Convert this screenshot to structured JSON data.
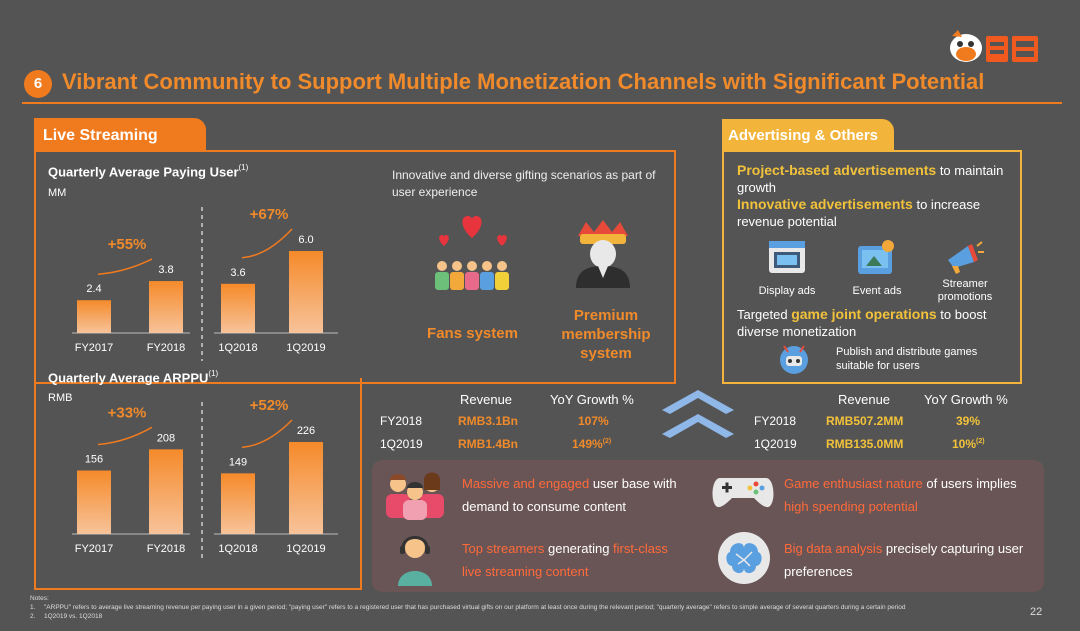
{
  "header": {
    "section_number": "6",
    "title": "Vibrant Community to Support Multiple Monetization Channels with Significant Potential"
  },
  "live_streaming": {
    "tab_label": "Live Streaming",
    "gifting_text": "Innovative and diverse gifting scenarios as part of user experience",
    "fans_label": "Fans system",
    "premium_label": "Premium membership system"
  },
  "chart_data": [
    {
      "type": "bar",
      "title": "Quarterly Average Paying User",
      "title_sup": "(1)",
      "unit": "MM",
      "categories": [
        "FY2017",
        "FY2018",
        "1Q2018",
        "1Q2019"
      ],
      "values": [
        2.4,
        3.8,
        3.6,
        6.0
      ],
      "value_labels": [
        "2.4",
        "3.8",
        "3.6",
        "6.0"
      ],
      "growth_labels": [
        "+55%",
        "+67%"
      ],
      "ylim": [
        0,
        6.0
      ]
    },
    {
      "type": "bar",
      "title": "Quarterly Average ARPPU",
      "title_sup": "(1)",
      "unit": "RMB",
      "categories": [
        "FY2017",
        "FY2018",
        "1Q2018",
        "1Q2019"
      ],
      "values": [
        156,
        208,
        149,
        226
      ],
      "value_labels": [
        "156",
        "208",
        "149",
        "226"
      ],
      "growth_labels": [
        "+33%",
        "+52%"
      ],
      "ylim": [
        0,
        226
      ]
    }
  ],
  "live_table": {
    "col_revenue": "Revenue",
    "col_growth": "YoY Growth %",
    "rows": [
      {
        "period": "FY2018",
        "revenue": "RMB3.1Bn",
        "growth": "107%",
        "growth_sup": ""
      },
      {
        "period": "1Q2019",
        "revenue": "RMB1.4Bn",
        "growth": "149%",
        "growth_sup": "(2)"
      }
    ]
  },
  "advertising": {
    "tab_label": "Advertising & Others",
    "line1_bold": "Project-based advertisements",
    "line1_rest": " to maintain growth",
    "line2_bold": "Innovative advertisements",
    "line2_rest": " to increase revenue potential",
    "icon_display": "Display ads",
    "icon_event": "Event ads",
    "icon_streamer": "Streamer promotions",
    "line3_pre": "Targeted ",
    "line3_bold": "game joint operations",
    "line3_rest": " to boost diverse monetization",
    "publish_text": "Publish and distribute games suitable for users"
  },
  "adv_table": {
    "col_revenue": "Revenue",
    "col_growth": "YoY Growth %",
    "rows": [
      {
        "period": "FY2018",
        "revenue": "RMB507.2MM",
        "growth": "39%",
        "growth_sup": ""
      },
      {
        "period": "1Q2019",
        "revenue": "RMB135.0MM",
        "growth": "10%",
        "growth_sup": "(2)"
      }
    ]
  },
  "features": {
    "f1_red": "Massive and engaged",
    "f1_rest_a": " user base with",
    "f1_rest_b": "demand to consume content",
    "f2_red_a": "Game enthusiast nature",
    "f2_rest": " of users implies",
    "f2_red_b": "high spending potential",
    "f3_red_a": "Top streamers",
    "f3_mid": " generating ",
    "f3_red_b": "first-class",
    "f3_red_c": "live streaming content",
    "f4_red": "Big data analysis",
    "f4_rest_a": " precisely capturing user",
    "f4_rest_b": "preferences"
  },
  "notes": {
    "heading": "Notes:",
    "n1_num": "1.",
    "n1": "\"ARPPU\" refers to average live streaming revenue per paying user in a given period; \"paying user\" refers to a registered user that has purchased virtual gifts on our platform at least once during the relevant period; \"quarterly average\" refers to simple average of several quarters during a certain period",
    "n2_num": "2.",
    "n2": "1Q2019 vs. 1Q2018"
  },
  "page_number": "22",
  "colors": {
    "background": "#545454",
    "accent_orange": "#f07a1e",
    "accent_yellow": "#f2b43a",
    "feature_red": "#ff6a3a"
  }
}
